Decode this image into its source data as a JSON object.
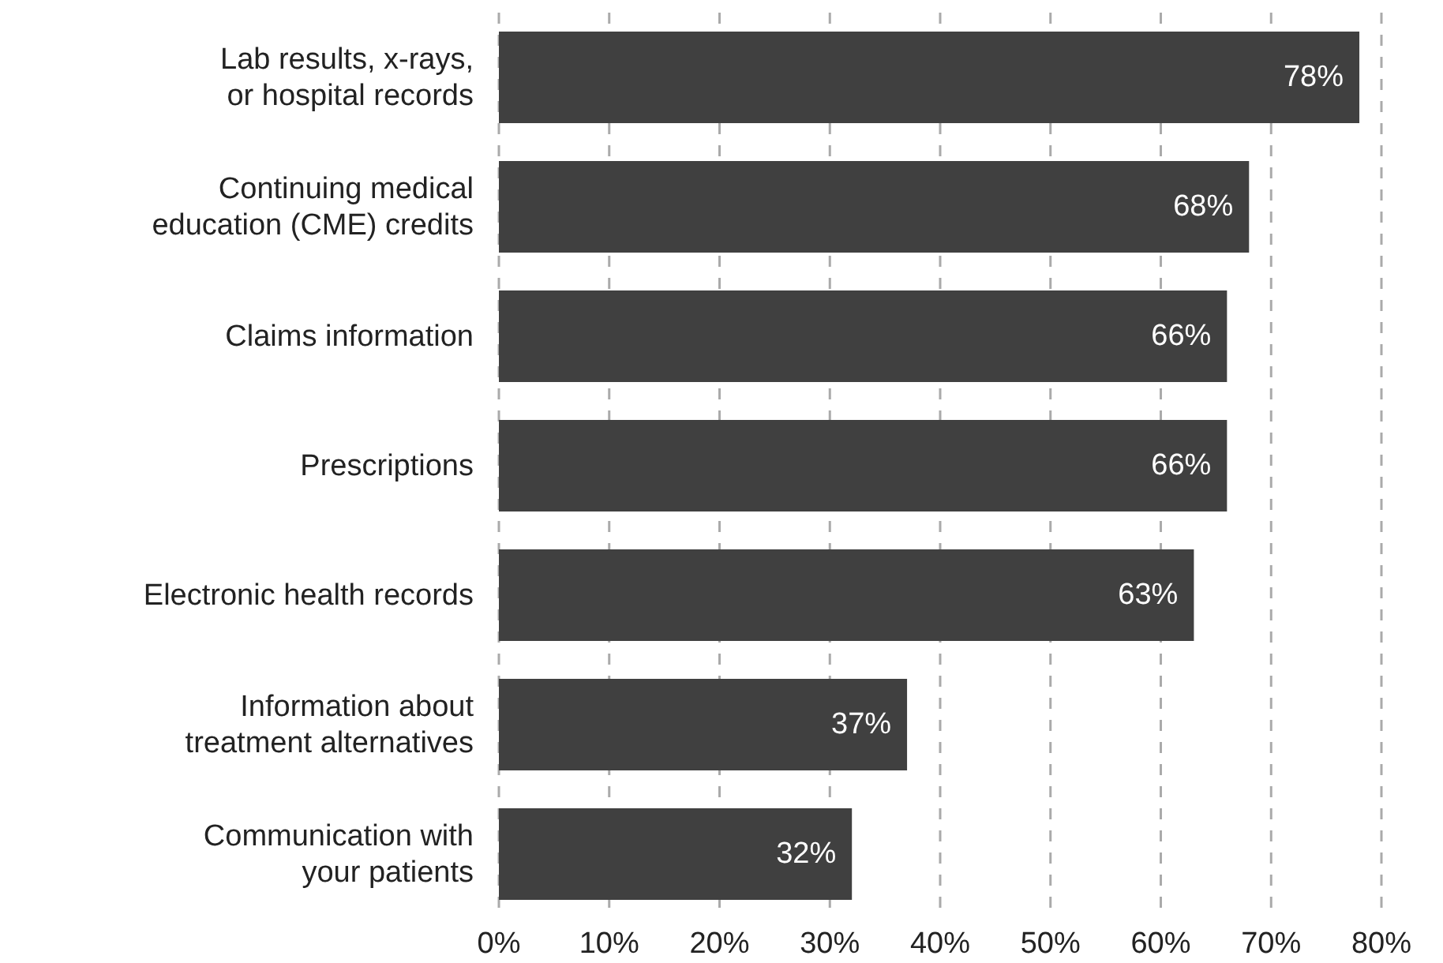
{
  "chart_data": {
    "type": "bar",
    "orientation": "horizontal",
    "categories": [
      "Lab results, x-rays,\nor hospital records",
      "Continuing medical\neducation (CME) credits",
      "Claims information",
      "Prescriptions",
      "Electronic health records",
      "Information about\ntreatment alternatives",
      "Communication with\nyour patients"
    ],
    "values": [
      78,
      68,
      66,
      66,
      63,
      37,
      32
    ],
    "value_labels": [
      "78%",
      "68%",
      "66%",
      "66%",
      "63%",
      "37%",
      "32%"
    ],
    "color": "#404040",
    "xlim": [
      0,
      80
    ],
    "xticks": [
      {
        "value": 0,
        "label": "0%"
      },
      {
        "value": 10,
        "label": "10%"
      },
      {
        "value": 20,
        "label": "20%"
      },
      {
        "value": 30,
        "label": "30%"
      },
      {
        "value": 40,
        "label": "40%"
      },
      {
        "value": 50,
        "label": "50%"
      },
      {
        "value": 60,
        "label": "60%"
      },
      {
        "value": 70,
        "label": "70%"
      },
      {
        "value": 80,
        "label": "80%"
      }
    ],
    "grid": "x"
  }
}
